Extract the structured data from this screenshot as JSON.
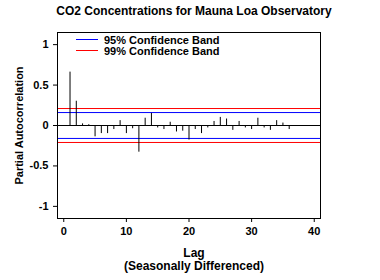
{
  "chart_data": {
    "type": "stem",
    "title": "CO2 Concentrations for Mauna Loa Observatory",
    "xlabel": [
      "Lag",
      "(Seasonally Differenced)"
    ],
    "ylabel": "Partial Autocorrelation",
    "x": [
      1,
      2,
      3,
      4,
      5,
      6,
      7,
      8,
      9,
      10,
      11,
      12,
      13,
      14,
      15,
      16,
      17,
      18,
      19,
      20,
      21,
      22,
      23,
      24,
      25,
      26,
      27,
      28,
      29,
      30,
      31,
      32,
      33,
      34,
      35,
      36
    ],
    "values": [
      0.66,
      0.3,
      0.02,
      0.01,
      -0.14,
      -0.1,
      -0.1,
      -0.05,
      0.06,
      -0.1,
      -0.04,
      -0.33,
      0.09,
      0.15,
      -0.03,
      -0.05,
      0.04,
      -0.08,
      -0.07,
      -0.18,
      -0.05,
      -0.1,
      -0.03,
      0.05,
      0.1,
      0.08,
      -0.06,
      0.05,
      -0.03,
      -0.05,
      0.09,
      -0.03,
      -0.06,
      0.06,
      0.03,
      -0.05
    ],
    "color": "#000000",
    "bands": [
      {
        "name": "95% Confidence Band",
        "color": "#0000ff",
        "values": [
          -0.16,
          0.16
        ]
      },
      {
        "name": "99% Confidence Band",
        "color": "#ff0000",
        "values": [
          -0.21,
          0.21
        ]
      }
    ],
    "legend": "upper left",
    "xlim": [
      -1,
      41
    ],
    "xticks": [
      0,
      10,
      20,
      30,
      40
    ],
    "ylim": [
      -1.15,
      1.15
    ],
    "yticks": [
      -1,
      -0.5,
      0,
      0.5,
      1
    ]
  }
}
